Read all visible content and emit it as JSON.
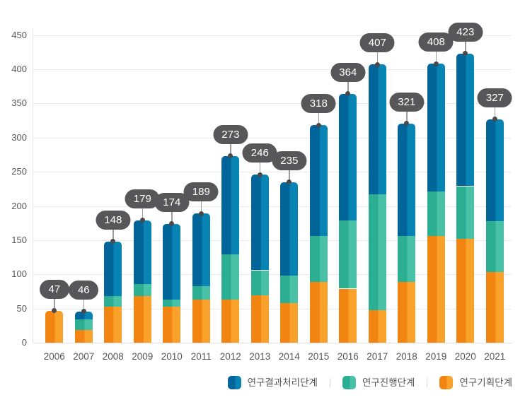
{
  "chart_data": {
    "type": "bar",
    "stacked": true,
    "title": "",
    "xlabel": "",
    "ylabel": "",
    "categories": [
      "2006",
      "2007",
      "2008",
      "2009",
      "2010",
      "2011",
      "2012",
      "2013",
      "2014",
      "2015",
      "2016",
      "2017",
      "2018",
      "2019",
      "2020",
      "2021"
    ],
    "series": [
      {
        "name": "연구기획단계",
        "color_dark": "#F28511",
        "color_light": "#F9A22B",
        "values": [
          47,
          19,
          53,
          68,
          53,
          63,
          63,
          69,
          58,
          89,
          79,
          48,
          89,
          156,
          152,
          103
        ]
      },
      {
        "name": "연구진행단계",
        "color_dark": "#2BAE92",
        "color_light": "#49C1A7",
        "values": [
          0,
          15,
          15,
          18,
          10,
          20,
          66,
          37,
          40,
          67,
          100,
          169,
          67,
          65,
          77,
          75
        ]
      },
      {
        "name": "연구결과처리단계",
        "color_dark": "#02659A",
        "color_light": "#0784B3",
        "values": [
          0,
          12,
          80,
          93,
          111,
          106,
          144,
          140,
          137,
          162,
          185,
          190,
          165,
          187,
          194,
          149
        ]
      }
    ],
    "data_labels": [
      "47",
      "46",
      "148",
      "179",
      "174",
      "189",
      "273",
      "246",
      "235",
      "318",
      "364",
      "407",
      "321",
      "408",
      "423",
      "327"
    ],
    "y_axis": {
      "min": 0,
      "max": 450,
      "step": 50,
      "ticks": [
        "0",
        "50",
        "100",
        "150",
        "200",
        "250",
        "300",
        "350",
        "400",
        "450"
      ]
    },
    "grid": true,
    "legend_position": "bottom-right",
    "legend": [
      {
        "label": "연구결과처리단계",
        "color_dark": "#02659A",
        "color_light": "#0784B3"
      },
      {
        "label": "연구진행단계",
        "color_dark": "#2BAE92",
        "color_light": "#49C1A7"
      },
      {
        "label": "연구기획단계",
        "color_dark": "#F28511",
        "color_light": "#F9A22B"
      }
    ],
    "callout_style": {
      "background": "#57575A",
      "text_color": "#FFFFFF"
    }
  }
}
